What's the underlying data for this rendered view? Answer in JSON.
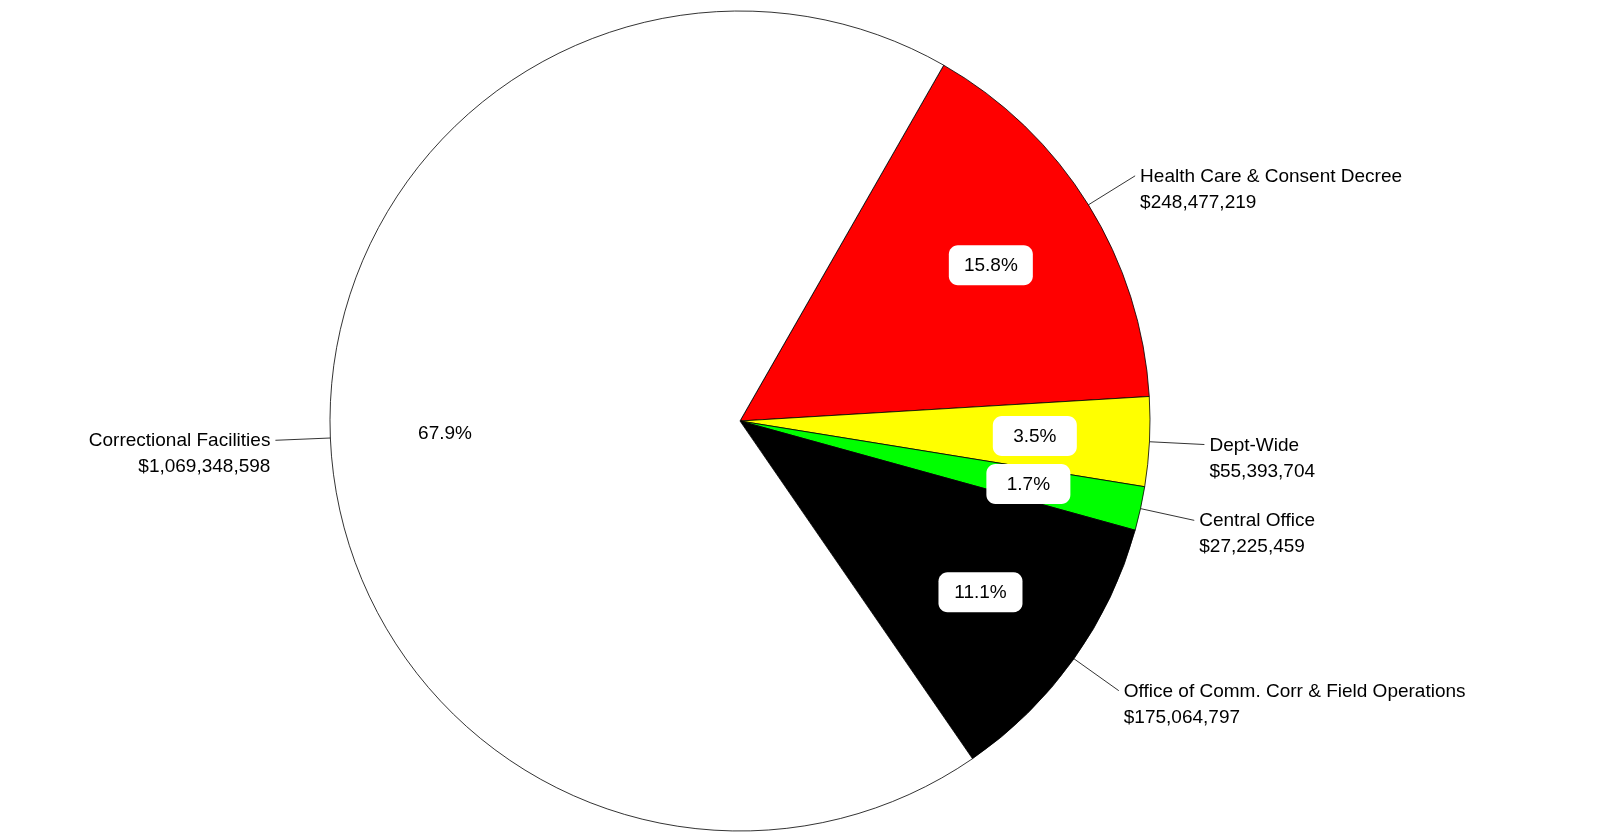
{
  "chart_data": {
    "type": "pie",
    "categories": [
      "Health Care & Consent Decree",
      "Dept-Wide",
      "Central Office",
      "Office of Comm. Corr & Field Operations",
      "Correctional Facilities"
    ],
    "values": [
      248477219,
      55393704,
      27225459,
      175064797,
      1069348598
    ],
    "value_labels": [
      "$248,477,219",
      "$55,393,704",
      "$27,225,459",
      "$175,064,797",
      "$1,069,348,598"
    ],
    "colors": [
      "#ff0000",
      "#ffff00",
      "#00ff00",
      "#000000",
      "#ffffff"
    ],
    "annotations": [
      "15.8%",
      "3.5%",
      "1.7%",
      "11.1%",
      "67.9%"
    ]
  }
}
